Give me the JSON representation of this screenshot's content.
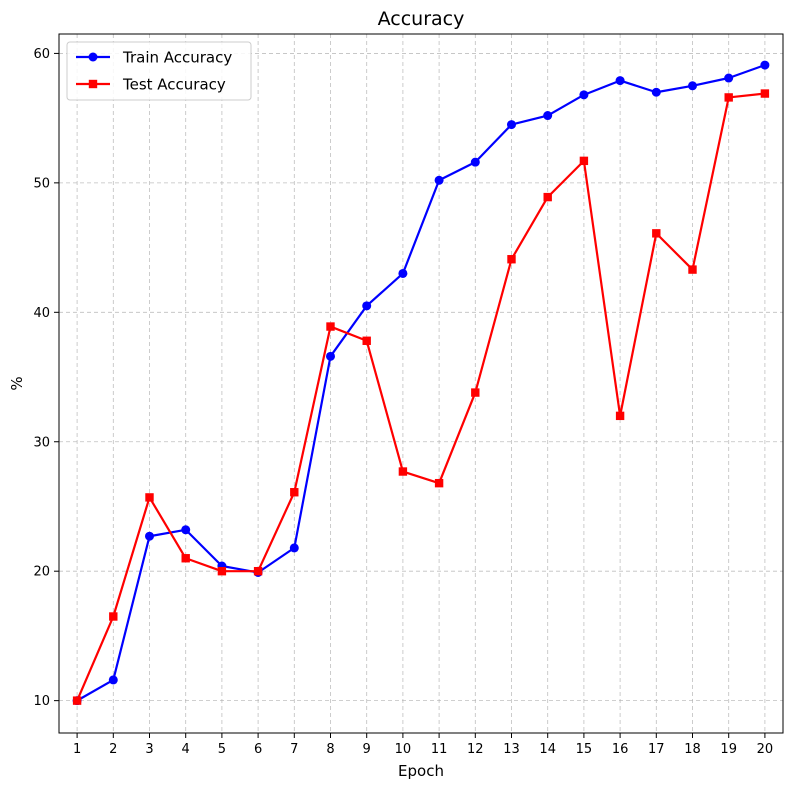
{
  "chart_data": {
    "type": "line",
    "title": "Accuracy",
    "xlabel": "Epoch",
    "ylabel": "%",
    "x": [
      1,
      2,
      3,
      4,
      5,
      6,
      7,
      8,
      9,
      10,
      11,
      12,
      13,
      14,
      15,
      16,
      17,
      18,
      19,
      20
    ],
    "xlim": [
      0.5,
      20.5
    ],
    "ylim": [
      7.5,
      61.5
    ],
    "yticks": [
      10,
      20,
      30,
      40,
      50,
      60
    ],
    "grid": true,
    "legend_position": "top-left",
    "series": [
      {
        "name": "Train Accuracy",
        "color": "#0000ff",
        "marker": "circle",
        "values": [
          10.0,
          11.6,
          22.7,
          23.2,
          20.4,
          19.9,
          21.8,
          36.6,
          40.5,
          43.0,
          50.2,
          51.6,
          54.5,
          55.2,
          56.8,
          57.9,
          57.0,
          57.5,
          58.1,
          59.1
        ]
      },
      {
        "name": "Test Accuracy",
        "color": "#ff0000",
        "marker": "square",
        "values": [
          10.0,
          16.5,
          25.7,
          21.0,
          20.0,
          20.0,
          26.1,
          38.9,
          37.8,
          27.7,
          26.8,
          33.8,
          44.1,
          48.9,
          51.7,
          32.0,
          46.1,
          43.3,
          56.6,
          56.9
        ]
      }
    ]
  }
}
